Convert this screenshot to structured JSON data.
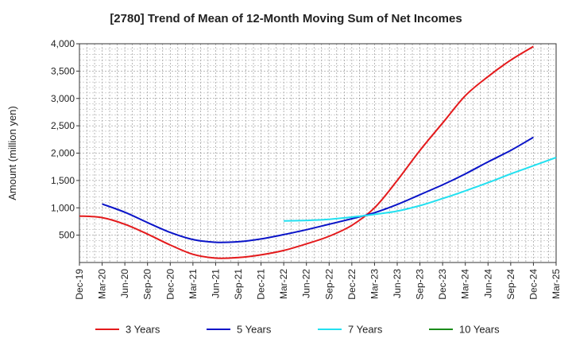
{
  "chart_data": {
    "type": "line",
    "title": "[2780]  Trend of Mean of 12-Month Moving Sum of Net Incomes",
    "xlabel": "",
    "ylabel": "Amount (million yen)",
    "ylim": [
      0,
      4000
    ],
    "yticks": [
      500,
      1000,
      1500,
      2000,
      2500,
      3000,
      3500,
      4000
    ],
    "ytick_labels": [
      "500",
      "1,000",
      "1,500",
      "2,000",
      "2,500",
      "3,000",
      "3,500",
      "4,000"
    ],
    "xtick_labels": [
      "Dec-19",
      "Mar-20",
      "Jun-20",
      "Sep-20",
      "Dec-20",
      "Mar-21",
      "Jun-21",
      "Sep-21",
      "Dec-21",
      "Mar-22",
      "Jun-22",
      "Sep-22",
      "Dec-22",
      "Mar-23",
      "Jun-23",
      "Sep-23",
      "Dec-23",
      "Mar-24",
      "Jun-24",
      "Sep-24",
      "Dec-24",
      "Mar-25"
    ],
    "grid": true,
    "legend_position": "bottom",
    "series": [
      {
        "name": "3 Years",
        "color": "#e41a1c",
        "start": 0,
        "values": [
          850,
          820,
          700,
          520,
          320,
          150,
          80,
          90,
          140,
          220,
          340,
          480,
          680,
          1000,
          1500,
          2050,
          2550,
          3050,
          3400,
          3700,
          3950
        ]
      },
      {
        "name": "5 Years",
        "color": "#0a14c8",
        "start": 1,
        "values": [
          1070,
          920,
          730,
          550,
          420,
          370,
          380,
          430,
          510,
          600,
          700,
          800,
          910,
          1060,
          1240,
          1420,
          1620,
          1840,
          2050,
          2290
        ]
      },
      {
        "name": "7 Years",
        "color": "#22e0f0",
        "start": 9,
        "values": [
          760,
          770,
          790,
          830,
          880,
          940,
          1040,
          1170,
          1310,
          1460,
          1620,
          1770,
          1920
        ]
      },
      {
        "name": "10 Years",
        "color": "#1a8c1a",
        "start": 0,
        "values": []
      }
    ]
  }
}
